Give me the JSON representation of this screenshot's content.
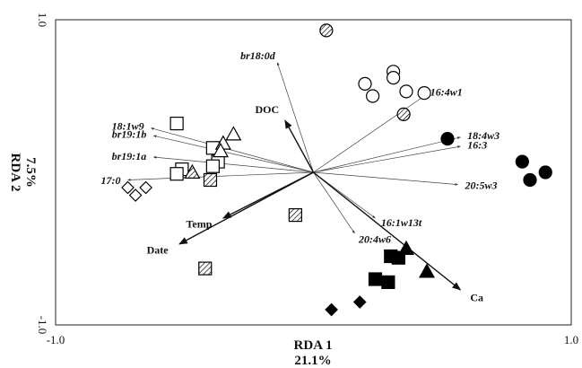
{
  "chart_data": {
    "type": "scatter",
    "title": "",
    "xlabel": "RDA 1",
    "xlabel_pct": "21.1%",
    "ylabel": "RDA 2",
    "ylabel_pct": "7.5%",
    "xlim": [
      -1.0,
      1.0
    ],
    "ylim": [
      -1.0,
      1.0
    ],
    "x_ticks": [
      "-1.0",
      "1.0"
    ],
    "y_ticks": [
      "1.0",
      "-1.0"
    ],
    "environment_vectors": [
      {
        "label": "DOC",
        "x": -0.11,
        "y": 0.34
      },
      {
        "label": "Temp",
        "x": -0.35,
        "y": -0.3
      },
      {
        "label": "Date",
        "x": -0.52,
        "y": -0.47
      },
      {
        "label": "Ca",
        "x": 0.57,
        "y": -0.77
      }
    ],
    "species_vectors": [
      {
        "label": "br18:0d",
        "x": -0.14,
        "y": 0.72
      },
      {
        "label": "18:1w9",
        "x": -0.63,
        "y": 0.29
      },
      {
        "label": "br19:1b",
        "x": -0.62,
        "y": 0.24
      },
      {
        "label": "br19:1a",
        "x": -0.62,
        "y": 0.1
      },
      {
        "label": "17:0",
        "x": -0.72,
        "y": -0.05
      },
      {
        "label": "16:4w1",
        "x": 0.43,
        "y": 0.5
      },
      {
        "label": "18:4w3",
        "x": 0.57,
        "y": 0.23
      },
      {
        "label": "16:3",
        "x": 0.57,
        "y": 0.17
      },
      {
        "label": "20:5w3",
        "x": 0.56,
        "y": -0.08
      },
      {
        "label": "16:1w13t",
        "x": 0.24,
        "y": -0.3
      },
      {
        "label": "20:4w6",
        "x": 0.16,
        "y": -0.4
      }
    ],
    "samples": [
      {
        "shape": "circle",
        "fill": "hatched",
        "x": 0.05,
        "y": 0.93
      },
      {
        "shape": "circle",
        "fill": "open",
        "x": 0.31,
        "y": 0.66
      },
      {
        "shape": "circle",
        "fill": "open",
        "x": 0.31,
        "y": 0.62
      },
      {
        "shape": "circle",
        "fill": "open",
        "x": 0.2,
        "y": 0.58
      },
      {
        "shape": "circle",
        "fill": "open",
        "x": 0.23,
        "y": 0.5
      },
      {
        "shape": "circle",
        "fill": "open",
        "x": 0.36,
        "y": 0.53
      },
      {
        "shape": "circle",
        "fill": "open",
        "x": 0.43,
        "y": 0.52
      },
      {
        "shape": "circle",
        "fill": "hatched",
        "x": 0.35,
        "y": 0.38
      },
      {
        "shape": "circle",
        "fill": "filled",
        "x": 0.52,
        "y": 0.22
      },
      {
        "shape": "circle",
        "fill": "filled",
        "x": 0.81,
        "y": 0.07
      },
      {
        "shape": "circle",
        "fill": "filled",
        "x": 0.9,
        "y": 0.0
      },
      {
        "shape": "circle",
        "fill": "filled",
        "x": 0.84,
        "y": -0.05
      },
      {
        "shape": "square",
        "fill": "open",
        "x": -0.53,
        "y": 0.32
      },
      {
        "shape": "square",
        "fill": "open",
        "x": -0.39,
        "y": 0.16
      },
      {
        "shape": "square",
        "fill": "open",
        "x": -0.37,
        "y": 0.07
      },
      {
        "shape": "square",
        "fill": "open",
        "x": -0.39,
        "y": 0.04
      },
      {
        "shape": "square",
        "fill": "open",
        "x": -0.51,
        "y": 0.02
      },
      {
        "shape": "square",
        "fill": "open",
        "x": -0.53,
        "y": -0.01
      },
      {
        "shape": "square",
        "fill": "hatched",
        "x": -0.4,
        "y": -0.05
      },
      {
        "shape": "square",
        "fill": "hatched",
        "x": -0.07,
        "y": -0.28
      },
      {
        "shape": "square",
        "fill": "hatched",
        "x": -0.42,
        "y": -0.63
      },
      {
        "shape": "square",
        "fill": "filled",
        "x": 0.3,
        "y": -0.55
      },
      {
        "shape": "square",
        "fill": "filled",
        "x": 0.33,
        "y": -0.56
      },
      {
        "shape": "square",
        "fill": "filled",
        "x": 0.24,
        "y": -0.7
      },
      {
        "shape": "square",
        "fill": "filled",
        "x": 0.29,
        "y": -0.72
      },
      {
        "shape": "triangle",
        "fill": "open",
        "x": -0.31,
        "y": 0.25
      },
      {
        "shape": "triangle",
        "fill": "open",
        "x": -0.35,
        "y": 0.19
      },
      {
        "shape": "triangle",
        "fill": "open",
        "x": -0.36,
        "y": 0.14
      },
      {
        "shape": "triangle",
        "fill": "hatched",
        "x": -0.47,
        "y": 0.0
      },
      {
        "shape": "triangle",
        "fill": "filled",
        "x": 0.36,
        "y": -0.5
      },
      {
        "shape": "triangle",
        "fill": "filled",
        "x": 0.44,
        "y": -0.65
      },
      {
        "shape": "diamond",
        "fill": "open",
        "x": -0.72,
        "y": -0.1
      },
      {
        "shape": "diamond",
        "fill": "open",
        "x": -0.69,
        "y": -0.15
      },
      {
        "shape": "diamond",
        "fill": "open",
        "x": -0.65,
        "y": -0.1
      },
      {
        "shape": "diamond",
        "fill": "filled",
        "x": 0.18,
        "y": -0.85
      },
      {
        "shape": "diamond",
        "fill": "filled",
        "x": 0.07,
        "y": -0.9
      }
    ]
  }
}
